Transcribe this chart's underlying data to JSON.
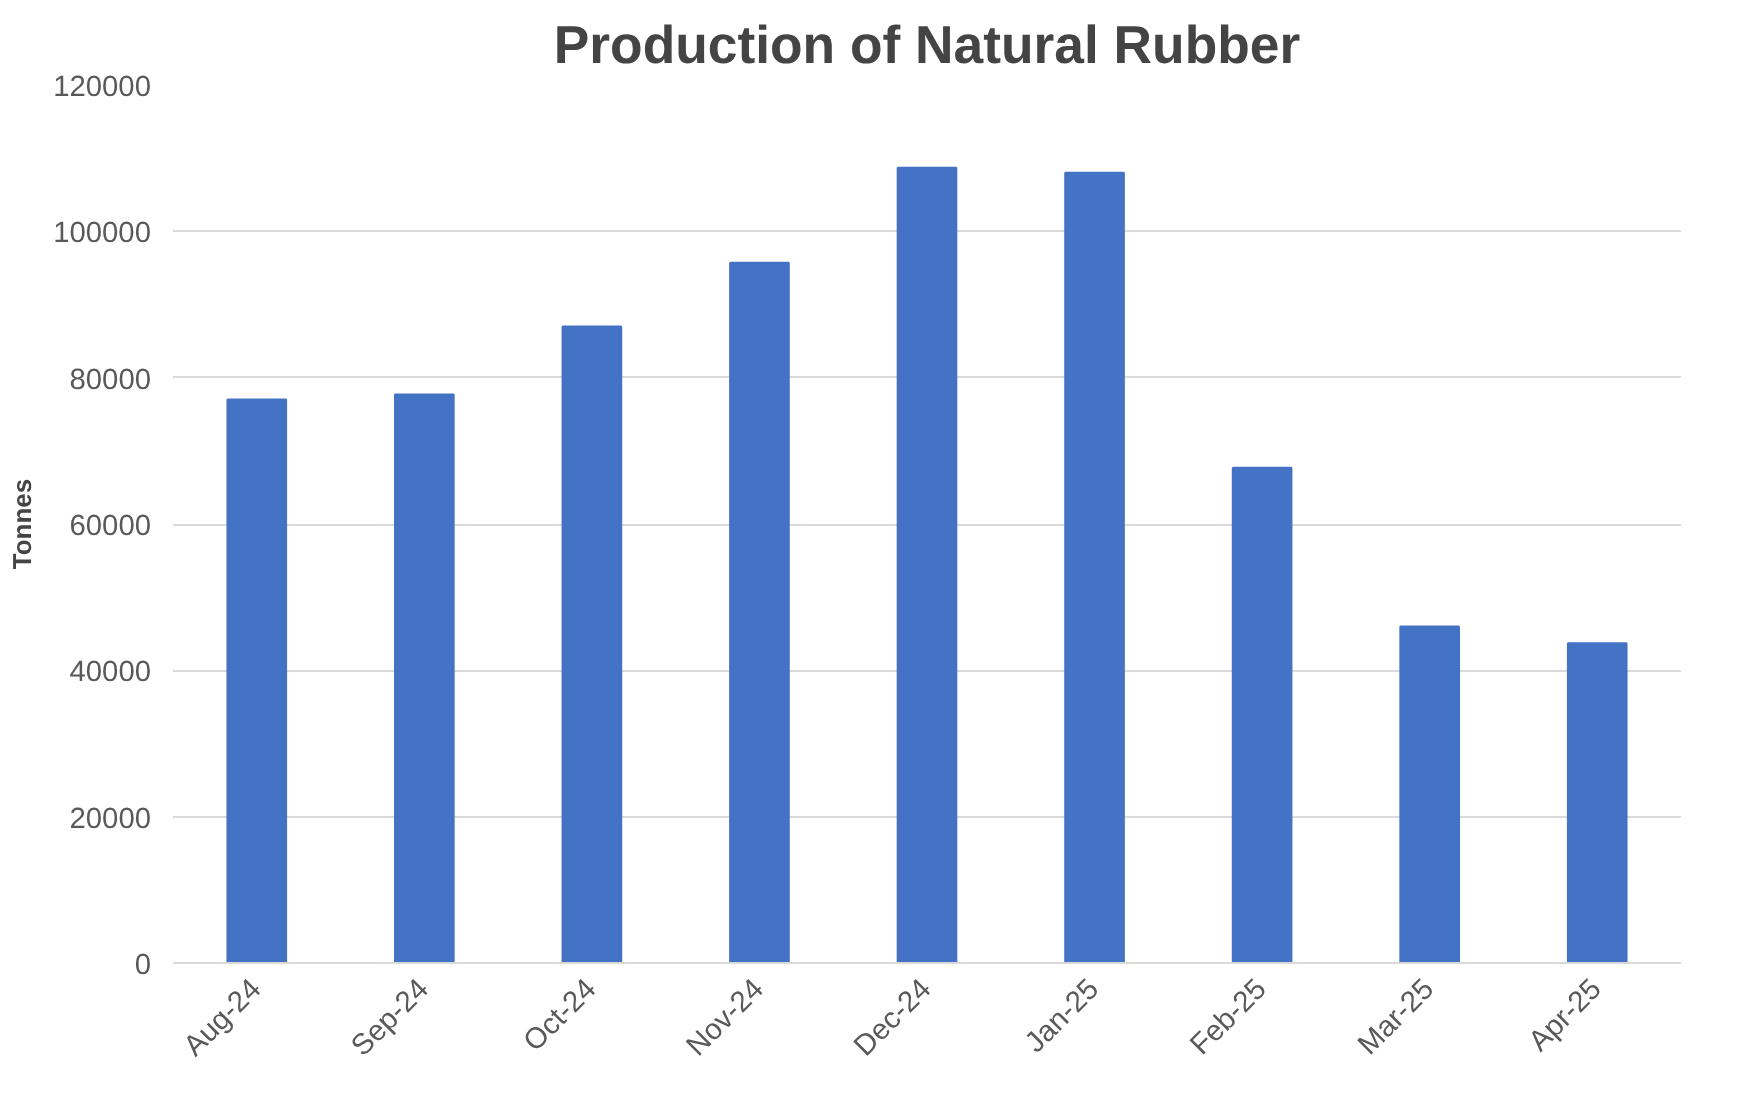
{
  "chart_data": {
    "type": "bar",
    "title": "Production of Natural Rubber",
    "ylabel": "Tonnes",
    "categories": [
      "Aug-24",
      "Sep-24",
      "Oct-24",
      "Nov-24",
      "Dec-24",
      "Jan-25",
      "Feb-25",
      "Mar-25",
      "Apr-25"
    ],
    "values": [
      77000,
      77700,
      87000,
      95700,
      108700,
      108000,
      67700,
      46000,
      43700
    ],
    "color": "#4472c4",
    "ylim": [
      0,
      120000
    ],
    "yticks": [
      0,
      20000,
      40000,
      60000,
      80000,
      100000,
      120000
    ],
    "grid": "y"
  }
}
